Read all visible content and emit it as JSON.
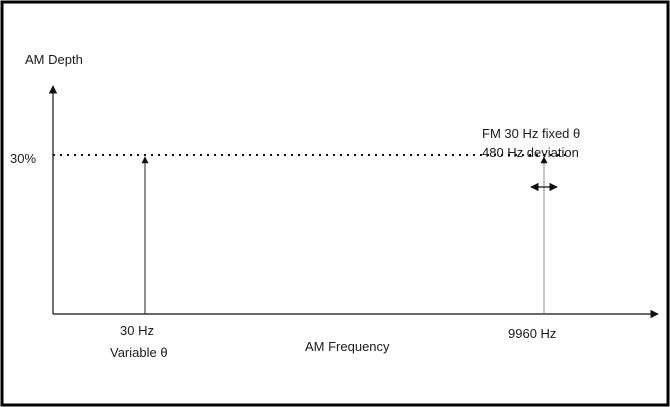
{
  "diagram": {
    "y_axis_label": "AM Depth",
    "x_axis_label": "AM Frequency",
    "depth_level_label": "30%",
    "components": [
      {
        "frequency_label": "30 Hz",
        "note": "Variable θ"
      },
      {
        "frequency_label": "9960 Hz",
        "note_line1": "FM 30 Hz fixed θ",
        "note_line2": "480 Hz deviation",
        "marker": "double-headed horizontal arrow"
      }
    ]
  },
  "colors": {
    "border": "#000000",
    "axis": "#111111",
    "line": "#222222",
    "background": "#ffffff"
  }
}
